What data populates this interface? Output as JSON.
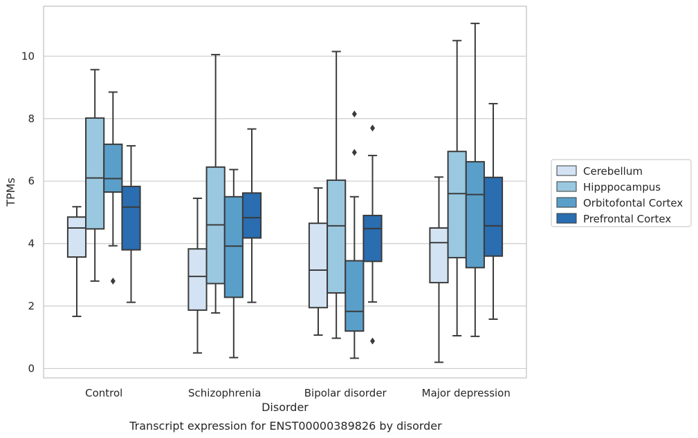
{
  "chart_data": {
    "type": "box",
    "caption": "Transcript expression for ENST00000389826 by disorder",
    "xlabel": "Disorder",
    "ylabel": "TPMs",
    "ylim": [
      -0.3,
      11.6
    ],
    "yticks": [
      0,
      2,
      4,
      6,
      8,
      10
    ],
    "grid": true,
    "legend_position": "right",
    "categories": [
      "Control",
      "Schizophrenia",
      "Bipolar disorder",
      "Major depression"
    ],
    "series": [
      {
        "name": "Cerebellum",
        "color": "#d3e3f3",
        "boxes": [
          {
            "whisker_low": 1.67,
            "q1": 3.57,
            "median": 4.5,
            "q3": 4.85,
            "whisker_high": 5.18,
            "outliers": []
          },
          {
            "whisker_low": 0.5,
            "q1": 1.87,
            "median": 2.95,
            "q3": 3.83,
            "whisker_high": 5.45,
            "outliers": []
          },
          {
            "whisker_low": 1.07,
            "q1": 1.95,
            "median": 3.15,
            "q3": 4.65,
            "whisker_high": 5.78,
            "outliers": []
          },
          {
            "whisker_low": 0.2,
            "q1": 2.75,
            "median": 4.03,
            "q3": 4.5,
            "whisker_high": 6.13,
            "outliers": []
          }
        ]
      },
      {
        "name": "Hipppocampus",
        "color": "#9ac8e0",
        "boxes": [
          {
            "whisker_low": 2.8,
            "q1": 4.47,
            "median": 6.1,
            "q3": 8.02,
            "whisker_high": 9.57,
            "outliers": []
          },
          {
            "whisker_low": 1.78,
            "q1": 2.72,
            "median": 4.6,
            "q3": 6.45,
            "whisker_high": 10.05,
            "outliers": []
          },
          {
            "whisker_low": 0.97,
            "q1": 2.42,
            "median": 4.57,
            "q3": 6.03,
            "whisker_high": 10.15,
            "outliers": []
          },
          {
            "whisker_low": 1.05,
            "q1": 3.55,
            "median": 5.6,
            "q3": 6.95,
            "whisker_high": 10.5,
            "outliers": []
          }
        ]
      },
      {
        "name": "Orbitofontal Cortex",
        "color": "#5a9fc9",
        "boxes": [
          {
            "whisker_low": 3.93,
            "q1": 5.65,
            "median": 6.08,
            "q3": 7.18,
            "whisker_high": 8.85,
            "outliers": [
              2.8
            ]
          },
          {
            "whisker_low": 0.35,
            "q1": 2.28,
            "median": 3.92,
            "q3": 5.5,
            "whisker_high": 6.37,
            "outliers": []
          },
          {
            "whisker_low": 0.33,
            "q1": 1.2,
            "median": 1.83,
            "q3": 3.45,
            "whisker_high": 5.5,
            "outliers": [
              6.92,
              8.15
            ]
          },
          {
            "whisker_low": 1.03,
            "q1": 3.23,
            "median": 5.57,
            "q3": 6.62,
            "whisker_high": 11.05,
            "outliers": []
          }
        ]
      },
      {
        "name": "Prefrontal Cortex",
        "color": "#2a6db0",
        "boxes": [
          {
            "whisker_low": 2.12,
            "q1": 3.8,
            "median": 5.17,
            "q3": 5.83,
            "whisker_high": 7.13,
            "outliers": []
          },
          {
            "whisker_low": 2.12,
            "q1": 4.18,
            "median": 4.83,
            "q3": 5.62,
            "whisker_high": 7.67,
            "outliers": []
          },
          {
            "whisker_low": 2.13,
            "q1": 3.43,
            "median": 4.48,
            "q3": 4.9,
            "whisker_high": 6.82,
            "outliers": [
              0.88,
              7.7
            ]
          },
          {
            "whisker_low": 1.58,
            "q1": 3.6,
            "median": 4.57,
            "q3": 6.12,
            "whisker_high": 8.48,
            "outliers": []
          }
        ]
      }
    ]
  }
}
